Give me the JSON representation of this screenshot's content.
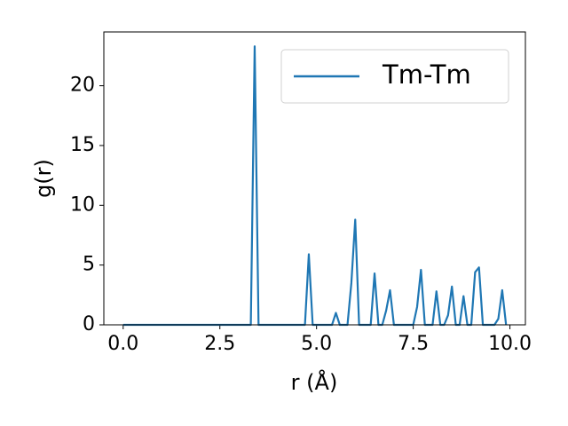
{
  "chart_data": {
    "type": "line",
    "xlabel": "r (Å)",
    "ylabel": "g(r)",
    "x": [
      0.0,
      0.1,
      0.2,
      0.3,
      0.4,
      0.5,
      0.6,
      0.7,
      0.8,
      0.9,
      1.0,
      1.1,
      1.2,
      1.3,
      1.4,
      1.5,
      1.6,
      1.7,
      1.8,
      1.9,
      2.0,
      2.1,
      2.2,
      2.3,
      2.4,
      2.5,
      2.6,
      2.7,
      2.8,
      2.9,
      3.0,
      3.1,
      3.2,
      3.3,
      3.4,
      3.5,
      3.6,
      3.7,
      3.8,
      3.9,
      4.0,
      4.1,
      4.2,
      4.3,
      4.4,
      4.5,
      4.6,
      4.7,
      4.8,
      4.9,
      5.0,
      5.1,
      5.2,
      5.3,
      5.4,
      5.5,
      5.6,
      5.7,
      5.8,
      5.9,
      6.0,
      6.1,
      6.2,
      6.3,
      6.4,
      6.5,
      6.6,
      6.7,
      6.8,
      6.9,
      7.0,
      7.1,
      7.2,
      7.3,
      7.4,
      7.5,
      7.6,
      7.7,
      7.8,
      7.9,
      8.0,
      8.1,
      8.2,
      8.3,
      8.4,
      8.5,
      8.6,
      8.7,
      8.8,
      8.9,
      9.0,
      9.1,
      9.2,
      9.3,
      9.4,
      9.5,
      9.6,
      9.7,
      9.8,
      9.9
    ],
    "series": [
      {
        "name": "Tm-Tm",
        "color": "#1f77b4",
        "values": [
          0,
          0,
          0,
          0,
          0,
          0,
          0,
          0,
          0,
          0,
          0,
          0,
          0,
          0,
          0,
          0,
          0,
          0,
          0,
          0,
          0,
          0,
          0,
          0,
          0,
          0,
          0,
          0,
          0,
          0,
          0,
          0,
          0,
          0,
          23.3,
          0,
          0,
          0,
          0,
          0,
          0,
          0,
          0,
          0,
          0,
          0,
          0,
          0,
          5.9,
          0,
          0,
          0,
          0,
          0,
          0,
          1.0,
          0,
          0,
          0,
          3.5,
          8.8,
          0,
          0,
          0,
          0,
          4.3,
          0,
          0,
          1.2,
          2.9,
          0,
          0,
          0,
          0,
          0,
          0,
          1.5,
          4.6,
          0,
          0,
          0,
          2.8,
          0,
          0,
          0.8,
          3.2,
          0,
          0,
          2.4,
          0,
          0,
          4.4,
          4.8,
          0,
          0,
          0,
          0,
          0.5,
          2.9,
          0
        ]
      }
    ],
    "xlim": [
      -0.5,
      10.4
    ],
    "ylim": [
      0,
      24.5
    ],
    "xticks": [
      {
        "value": 0,
        "label": "0.0"
      },
      2.5,
      {
        "value": 5,
        "label": "5.0"
      },
      7.5,
      {
        "value": 10,
        "label": "10.0"
      }
    ],
    "yticks": [
      0,
      5,
      10,
      15,
      20
    ],
    "legend": "upper right"
  }
}
